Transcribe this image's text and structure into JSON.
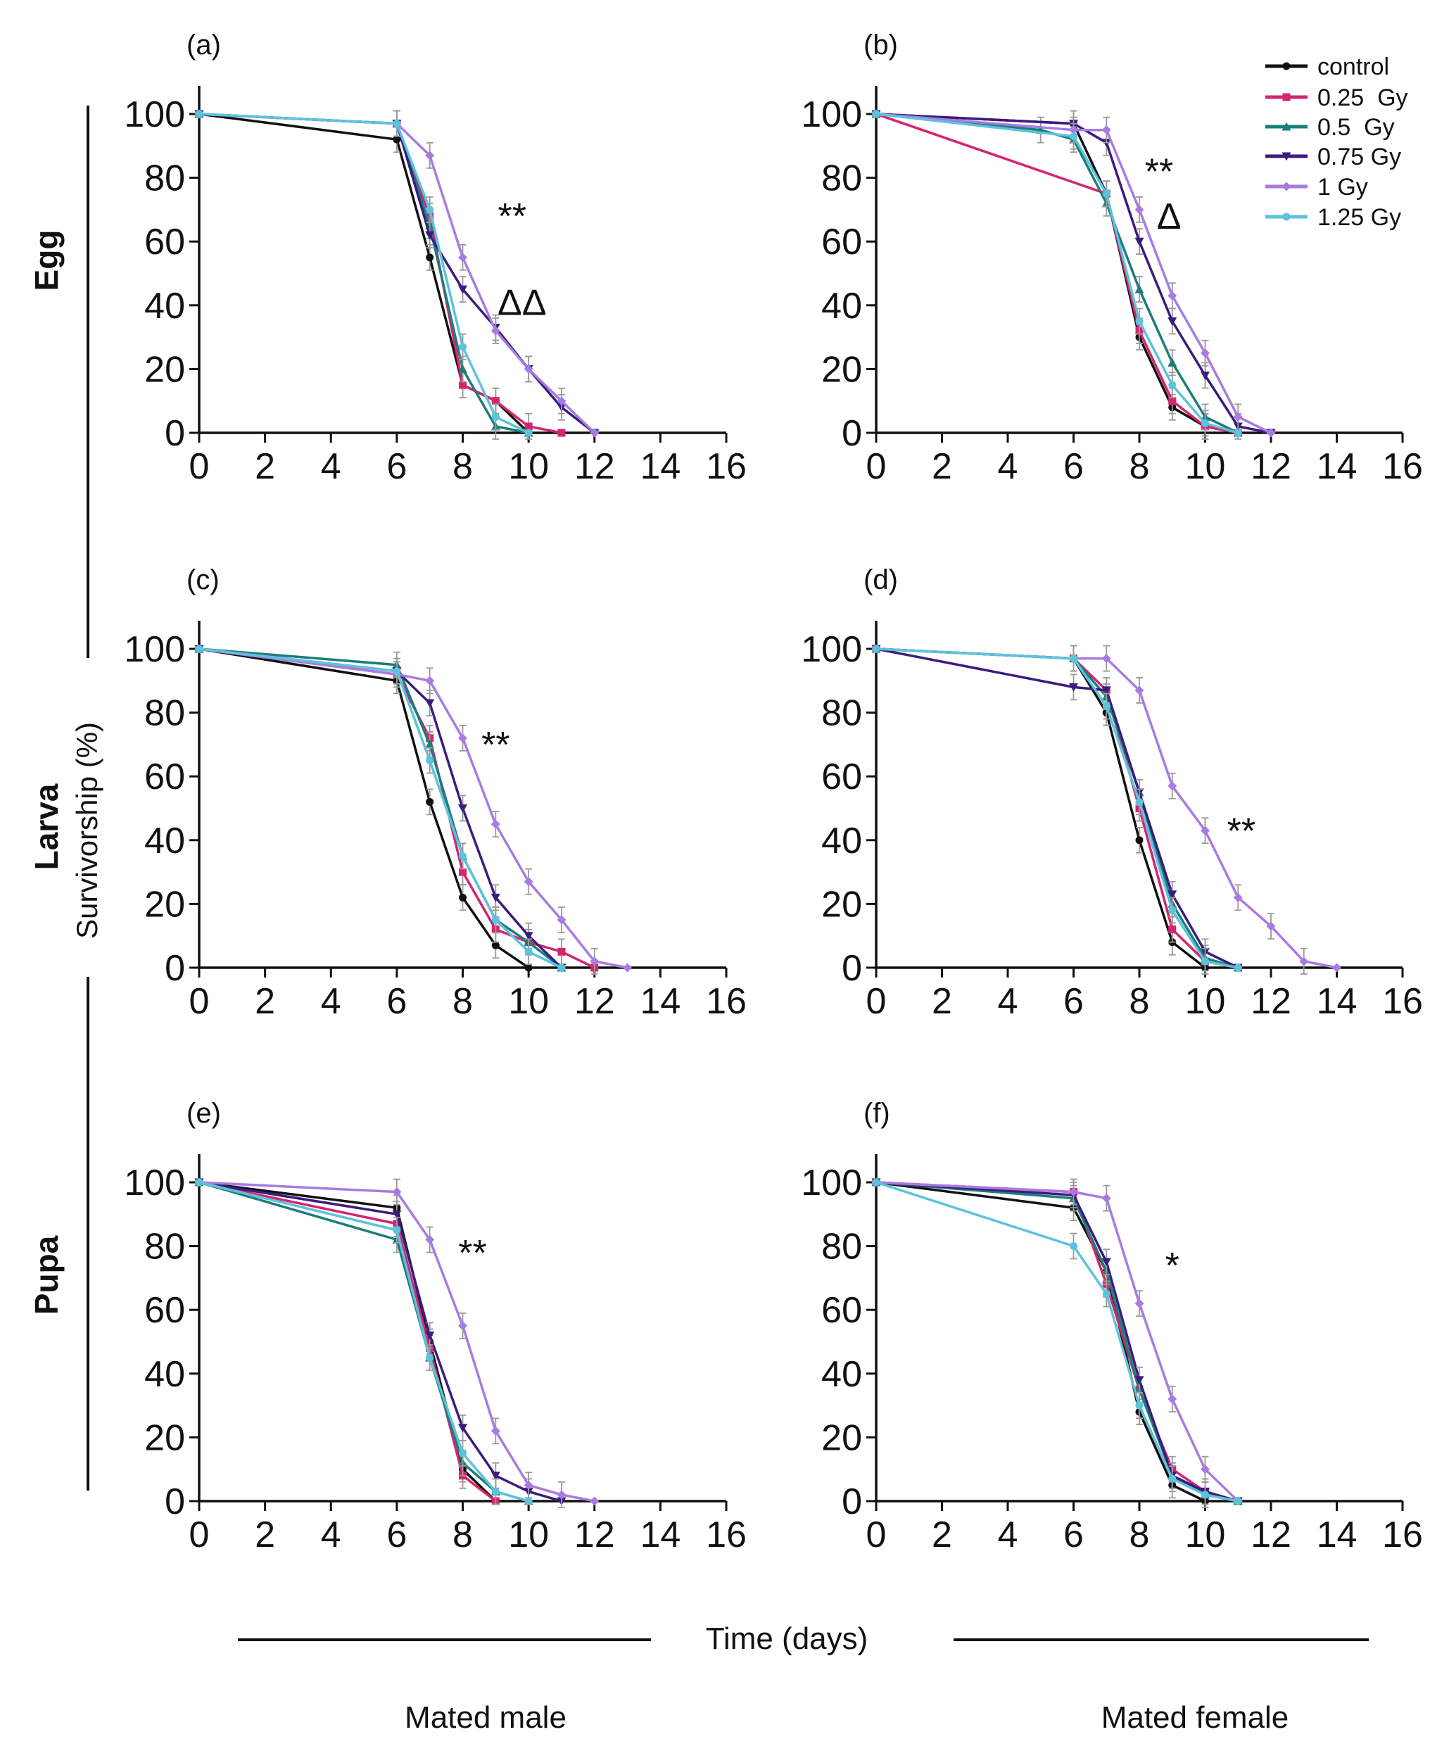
{
  "figure": {
    "row_labels": [
      "Egg",
      "Larva",
      "Pupa"
    ],
    "y_axis_title": "Survivorship (%)",
    "x_axis_title": "Time (days)",
    "column_labels": [
      "Mated male",
      "Mated female"
    ]
  },
  "legend": [
    {
      "name": "control",
      "color": "#111111",
      "marker": "dot"
    },
    {
      "name": "0.25  Gy",
      "color": "#d6246f",
      "marker": "square"
    },
    {
      "name": "0.5  Gy",
      "color": "#1d7d78",
      "marker": "triangle-up"
    },
    {
      "name": "0.75 Gy",
      "color": "#3b1c7e",
      "marker": "triangle-down"
    },
    {
      "name": "1 Gy",
      "color": "#a97be0",
      "marker": "diamond"
    },
    {
      "name": "1.25 Gy",
      "color": "#5cc3dc",
      "marker": "dot"
    }
  ],
  "chart_data": [
    {
      "panel": "(a)",
      "type": "line",
      "xlim": [
        0,
        16
      ],
      "ylim": [
        0,
        100
      ],
      "xticks": [
        "0",
        "2",
        "4",
        "6",
        "8",
        "10",
        "12",
        "14",
        "16"
      ],
      "yticks": [
        "0",
        "20",
        "40",
        "60",
        "80",
        "100"
      ],
      "annotations": [
        {
          "text": "**",
          "x": 9.5,
          "y": 64
        },
        {
          "text": "ΔΔ",
          "x": 9.8,
          "y": 37
        }
      ],
      "series": [
        {
          "name": "control",
          "x": [
            0,
            6,
            7,
            8,
            9,
            10
          ],
          "y": [
            100,
            92,
            55,
            15,
            10,
            0
          ]
        },
        {
          "name": "0.25  Gy",
          "x": [
            0,
            6,
            7,
            8,
            9,
            10,
            11
          ],
          "y": [
            100,
            97,
            68,
            15,
            10,
            2,
            0
          ]
        },
        {
          "name": "0.5  Gy",
          "x": [
            0,
            6,
            7,
            8,
            9,
            10
          ],
          "y": [
            100,
            97,
            65,
            20,
            2,
            0
          ]
        },
        {
          "name": "0.75 Gy",
          "x": [
            0,
            6,
            7,
            8,
            9,
            10,
            11,
            12
          ],
          "y": [
            100,
            97,
            62,
            45,
            33,
            20,
            8,
            0
          ]
        },
        {
          "name": "1 Gy",
          "x": [
            0,
            6,
            7,
            8,
            9,
            10,
            11,
            12
          ],
          "y": [
            100,
            97,
            87,
            55,
            32,
            20,
            10,
            0
          ]
        },
        {
          "name": "1.25 Gy",
          "x": [
            0,
            6,
            7,
            8,
            9,
            10
          ],
          "y": [
            100,
            97,
            70,
            27,
            5,
            0
          ]
        }
      ]
    },
    {
      "panel": "(b)",
      "type": "line",
      "xlim": [
        0,
        16
      ],
      "ylim": [
        0,
        100
      ],
      "xticks": [
        "0",
        "2",
        "4",
        "6",
        "8",
        "10",
        "12",
        "14",
        "16"
      ],
      "yticks": [
        "0",
        "20",
        "40",
        "60",
        "80",
        "100"
      ],
      "annotations": [
        {
          "text": "**",
          "x": 8.6,
          "y": 78
        },
        {
          "text": "Δ",
          "x": 8.9,
          "y": 64
        }
      ],
      "series": [
        {
          "name": "control",
          "x": [
            0,
            6,
            7,
            8,
            9,
            10,
            11
          ],
          "y": [
            100,
            97,
            75,
            30,
            8,
            2,
            0
          ]
        },
        {
          "name": "0.25  Gy",
          "x": [
            0,
            7,
            8,
            9,
            10,
            11
          ],
          "y": [
            100,
            75,
            32,
            10,
            2,
            0
          ]
        },
        {
          "name": "0.5  Gy",
          "x": [
            0,
            5,
            6,
            7,
            8,
            9,
            10,
            11
          ],
          "y": [
            100,
            95,
            92,
            72,
            45,
            22,
            5,
            0
          ]
        },
        {
          "name": "0.75 Gy",
          "x": [
            0,
            6,
            7,
            8,
            9,
            10,
            11,
            12
          ],
          "y": [
            100,
            97,
            91,
            60,
            35,
            18,
            2,
            0
          ]
        },
        {
          "name": "1 Gy",
          "x": [
            0,
            6,
            7,
            8,
            9,
            10,
            11,
            12
          ],
          "y": [
            100,
            95,
            95,
            70,
            43,
            25,
            5,
            0
          ]
        },
        {
          "name": "1.25 Gy",
          "x": [
            0,
            6,
            7,
            8,
            9,
            10,
            11
          ],
          "y": [
            100,
            93,
            75,
            35,
            15,
            3,
            0
          ]
        }
      ]
    },
    {
      "panel": "(c)",
      "type": "line",
      "xlim": [
        0,
        16
      ],
      "ylim": [
        0,
        100
      ],
      "xticks": [
        "0",
        "2",
        "4",
        "6",
        "8",
        "10",
        "12",
        "14",
        "16"
      ],
      "yticks": [
        "0",
        "20",
        "40",
        "60",
        "80",
        "100"
      ],
      "annotations": [
        {
          "text": "**",
          "x": 9.0,
          "y": 66
        }
      ],
      "series": [
        {
          "name": "control",
          "x": [
            0,
            6,
            7,
            8,
            9,
            10
          ],
          "y": [
            100,
            90,
            52,
            22,
            7,
            0
          ]
        },
        {
          "name": "0.25  Gy",
          "x": [
            0,
            6,
            7,
            8,
            9,
            10,
            11,
            12
          ],
          "y": [
            100,
            92,
            72,
            30,
            12,
            8,
            5,
            0
          ]
        },
        {
          "name": "0.5  Gy",
          "x": [
            0,
            6,
            7,
            8,
            9,
            10,
            11
          ],
          "y": [
            100,
            95,
            70,
            35,
            15,
            8,
            0
          ]
        },
        {
          "name": "0.75 Gy",
          "x": [
            0,
            6,
            7,
            8,
            9,
            10,
            11
          ],
          "y": [
            100,
            93,
            83,
            50,
            22,
            10,
            0
          ]
        },
        {
          "name": "1 Gy",
          "x": [
            0,
            6,
            7,
            8,
            9,
            10,
            11,
            12,
            13
          ],
          "y": [
            100,
            92,
            90,
            72,
            45,
            27,
            15,
            2,
            0
          ]
        },
        {
          "name": "1.25 Gy",
          "x": [
            0,
            6,
            7,
            8,
            9,
            10,
            11
          ],
          "y": [
            100,
            93,
            65,
            35,
            15,
            5,
            0
          ]
        }
      ]
    },
    {
      "panel": "(d)",
      "type": "line",
      "xlim": [
        0,
        16
      ],
      "ylim": [
        0,
        100
      ],
      "xticks": [
        "0",
        "2",
        "4",
        "6",
        "8",
        "10",
        "12",
        "14",
        "16"
      ],
      "yticks": [
        "0",
        "20",
        "40",
        "60",
        "80",
        "100"
      ],
      "annotations": [
        {
          "text": "**",
          "x": 11.1,
          "y": 39
        }
      ],
      "series": [
        {
          "name": "control",
          "x": [
            0,
            6,
            7,
            8,
            9,
            10
          ],
          "y": [
            100,
            97,
            80,
            40,
            8,
            0
          ]
        },
        {
          "name": "0.25  Gy",
          "x": [
            0,
            6,
            7,
            8,
            9,
            10,
            11
          ],
          "y": [
            100,
            97,
            87,
            50,
            12,
            2,
            0
          ]
        },
        {
          "name": "0.5  Gy",
          "x": [
            0,
            6,
            7,
            8,
            9,
            10,
            11
          ],
          "y": [
            100,
            97,
            85,
            55,
            20,
            3,
            0
          ]
        },
        {
          "name": "0.75 Gy",
          "x": [
            0,
            6,
            7,
            8,
            9,
            10,
            11
          ],
          "y": [
            100,
            88,
            87,
            55,
            23,
            5,
            0
          ]
        },
        {
          "name": "1 Gy",
          "x": [
            0,
            6,
            7,
            8,
            9,
            10,
            11,
            12,
            13,
            14
          ],
          "y": [
            100,
            97,
            97,
            87,
            57,
            43,
            22,
            13,
            2,
            0
          ]
        },
        {
          "name": "1.25 Gy",
          "x": [
            0,
            6,
            7,
            8,
            9,
            10,
            11
          ],
          "y": [
            100,
            97,
            82,
            52,
            18,
            2,
            0
          ]
        }
      ]
    },
    {
      "panel": "(e)",
      "type": "line",
      "xlim": [
        0,
        16
      ],
      "ylim": [
        0,
        100
      ],
      "xticks": [
        "0",
        "2",
        "4",
        "6",
        "8",
        "10",
        "12",
        "14",
        "16"
      ],
      "yticks": [
        "0",
        "20",
        "40",
        "60",
        "80",
        "100"
      ],
      "annotations": [
        {
          "text": "**",
          "x": 8.3,
          "y": 74
        }
      ],
      "series": [
        {
          "name": "control",
          "x": [
            0,
            6,
            7,
            8,
            9
          ],
          "y": [
            100,
            92,
            50,
            10,
            0
          ]
        },
        {
          "name": "0.25  Gy",
          "x": [
            0,
            6,
            7,
            8,
            9
          ],
          "y": [
            100,
            87,
            48,
            8,
            0
          ]
        },
        {
          "name": "0.5  Gy",
          "x": [
            0,
            6,
            7,
            8,
            9,
            10
          ],
          "y": [
            100,
            82,
            45,
            12,
            3,
            0
          ]
        },
        {
          "name": "0.75 Gy",
          "x": [
            0,
            6,
            7,
            8,
            9,
            10,
            11
          ],
          "y": [
            100,
            90,
            52,
            23,
            8,
            3,
            0
          ]
        },
        {
          "name": "1 Gy",
          "x": [
            0,
            6,
            7,
            8,
            9,
            10,
            11,
            12
          ],
          "y": [
            100,
            97,
            82,
            55,
            22,
            5,
            2,
            0
          ]
        },
        {
          "name": "1.25 Gy",
          "x": [
            0,
            6,
            7,
            8,
            9,
            10
          ],
          "y": [
            100,
            85,
            45,
            15,
            3,
            0
          ]
        }
      ]
    },
    {
      "panel": "(f)",
      "type": "line",
      "xlim": [
        0,
        16
      ],
      "ylim": [
        0,
        100
      ],
      "xticks": [
        "0",
        "2",
        "4",
        "6",
        "8",
        "10",
        "12",
        "14",
        "16"
      ],
      "yticks": [
        "0",
        "20",
        "40",
        "60",
        "80",
        "100"
      ],
      "annotations": [
        {
          "text": "*",
          "x": 9.0,
          "y": 70
        }
      ],
      "series": [
        {
          "name": "control",
          "x": [
            0,
            6,
            7,
            8,
            9,
            10
          ],
          "y": [
            100,
            92,
            72,
            28,
            5,
            0
          ]
        },
        {
          "name": "0.25  Gy",
          "x": [
            0,
            6,
            7,
            8,
            9,
            10,
            11
          ],
          "y": [
            100,
            97,
            68,
            35,
            10,
            3,
            0
          ]
        },
        {
          "name": "0.5  Gy",
          "x": [
            0,
            6,
            7,
            8,
            9,
            10,
            11
          ],
          "y": [
            100,
            95,
            72,
            35,
            8,
            2,
            0
          ]
        },
        {
          "name": "0.75 Gy",
          "x": [
            0,
            6,
            7,
            8,
            9,
            10,
            11
          ],
          "y": [
            100,
            96,
            75,
            38,
            8,
            3,
            0
          ]
        },
        {
          "name": "1 Gy",
          "x": [
            0,
            6,
            7,
            8,
            9,
            10,
            11
          ],
          "y": [
            100,
            97,
            95,
            62,
            32,
            10,
            0
          ]
        },
        {
          "name": "1.25 Gy",
          "x": [
            0,
            6,
            7,
            8,
            9,
            10,
            11
          ],
          "y": [
            100,
            80,
            65,
            30,
            7,
            2,
            0
          ]
        }
      ]
    }
  ]
}
